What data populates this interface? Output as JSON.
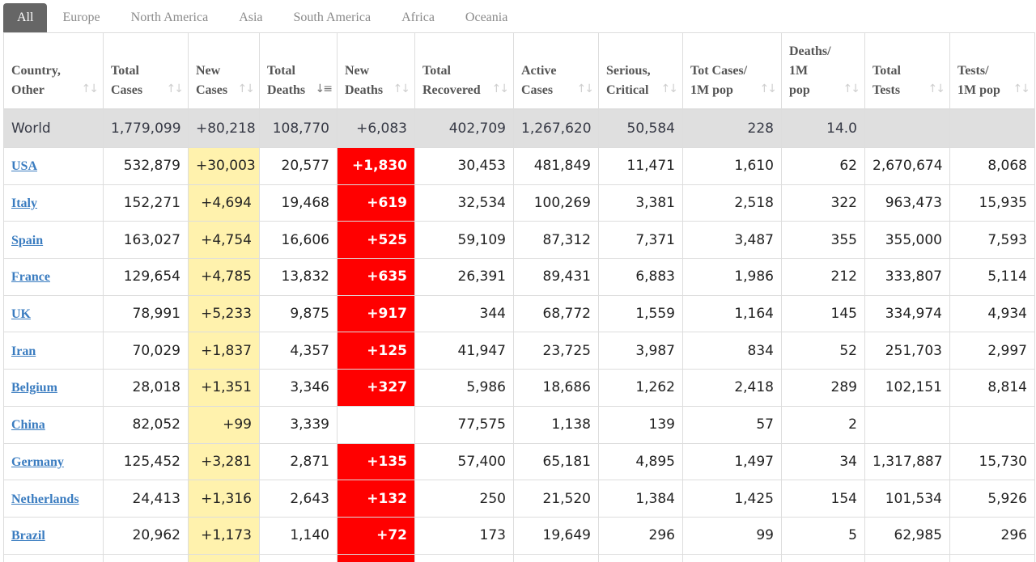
{
  "tabs": [
    {
      "label": "All",
      "active": true
    },
    {
      "label": "Europe",
      "active": false
    },
    {
      "label": "North America",
      "active": false
    },
    {
      "label": "Asia",
      "active": false
    },
    {
      "label": "South America",
      "active": false
    },
    {
      "label": "Africa",
      "active": false
    },
    {
      "label": "Oceania",
      "active": false
    }
  ],
  "columns": [
    {
      "label": "Country,\nOther",
      "sort_icon": "sort-icon"
    },
    {
      "label": "Total\nCases",
      "sort_icon": "sort-icon"
    },
    {
      "label": "New\nCases",
      "sort_icon": "sort-icon"
    },
    {
      "label": "Total\nDeaths",
      "sort_icon": "sort-descending-icon"
    },
    {
      "label": "New\nDeaths",
      "sort_icon": "sort-icon"
    },
    {
      "label": "Total\nRecovered",
      "sort_icon": "sort-icon"
    },
    {
      "label": "Active\nCases",
      "sort_icon": "sort-icon"
    },
    {
      "label": "Serious,\nCritical",
      "sort_icon": "sort-icon"
    },
    {
      "label": "Tot Cases/\n1M pop",
      "sort_icon": "sort-icon"
    },
    {
      "label": "Deaths/\n1M\npop",
      "sort_icon": "sort-icon"
    },
    {
      "label": "Total\nTests",
      "sort_icon": "sort-icon"
    },
    {
      "label": "Tests/\n1M pop",
      "sort_icon": "sort-icon"
    }
  ],
  "world": [
    "World",
    "1,779,099",
    "+80,218",
    "108,770",
    "+6,083",
    "402,709",
    "1,267,620",
    "50,584",
    "228",
    "14.0",
    "",
    ""
  ],
  "rows": [
    [
      "USA",
      "532,879",
      "+30,003",
      "20,577",
      "+1,830",
      "30,453",
      "481,849",
      "11,471",
      "1,610",
      "62",
      "2,670,674",
      "8,068"
    ],
    [
      "Italy",
      "152,271",
      "+4,694",
      "19,468",
      "+619",
      "32,534",
      "100,269",
      "3,381",
      "2,518",
      "322",
      "963,473",
      "15,935"
    ],
    [
      "Spain",
      "163,027",
      "+4,754",
      "16,606",
      "+525",
      "59,109",
      "87,312",
      "7,371",
      "3,487",
      "355",
      "355,000",
      "7,593"
    ],
    [
      "France",
      "129,654",
      "+4,785",
      "13,832",
      "+635",
      "26,391",
      "89,431",
      "6,883",
      "1,986",
      "212",
      "333,807",
      "5,114"
    ],
    [
      "UK",
      "78,991",
      "+5,233",
      "9,875",
      "+917",
      "344",
      "68,772",
      "1,559",
      "1,164",
      "145",
      "334,974",
      "4,934"
    ],
    [
      "Iran",
      "70,029",
      "+1,837",
      "4,357",
      "+125",
      "41,947",
      "23,725",
      "3,987",
      "834",
      "52",
      "251,703",
      "2,997"
    ],
    [
      "Belgium",
      "28,018",
      "+1,351",
      "3,346",
      "+327",
      "5,986",
      "18,686",
      "1,262",
      "2,418",
      "289",
      "102,151",
      "8,814"
    ],
    [
      "China",
      "82,052",
      "+99",
      "3,339",
      "",
      "77,575",
      "1,138",
      "139",
      "57",
      "2",
      "",
      ""
    ],
    [
      "Germany",
      "125,452",
      "+3,281",
      "2,871",
      "+135",
      "57,400",
      "65,181",
      "4,895",
      "1,497",
      "34",
      "1,317,887",
      "15,730"
    ],
    [
      "Netherlands",
      "24,413",
      "+1,316",
      "2,643",
      "+132",
      "250",
      "21,520",
      "1,384",
      "1,425",
      "154",
      "101,534",
      "5,926"
    ],
    [
      "Brazil",
      "20,962",
      "+1,173",
      "1,140",
      "+72",
      "173",
      "19,649",
      "296",
      "99",
      "5",
      "62,985",
      "296"
    ]
  ],
  "colors": {
    "active_tab_bg": "#666666",
    "new_cases_bg": "#fff2ad",
    "new_deaths_bg": "#ff0000",
    "world_row_bg": "#dfdfdf",
    "link": "#3a7cc0"
  }
}
